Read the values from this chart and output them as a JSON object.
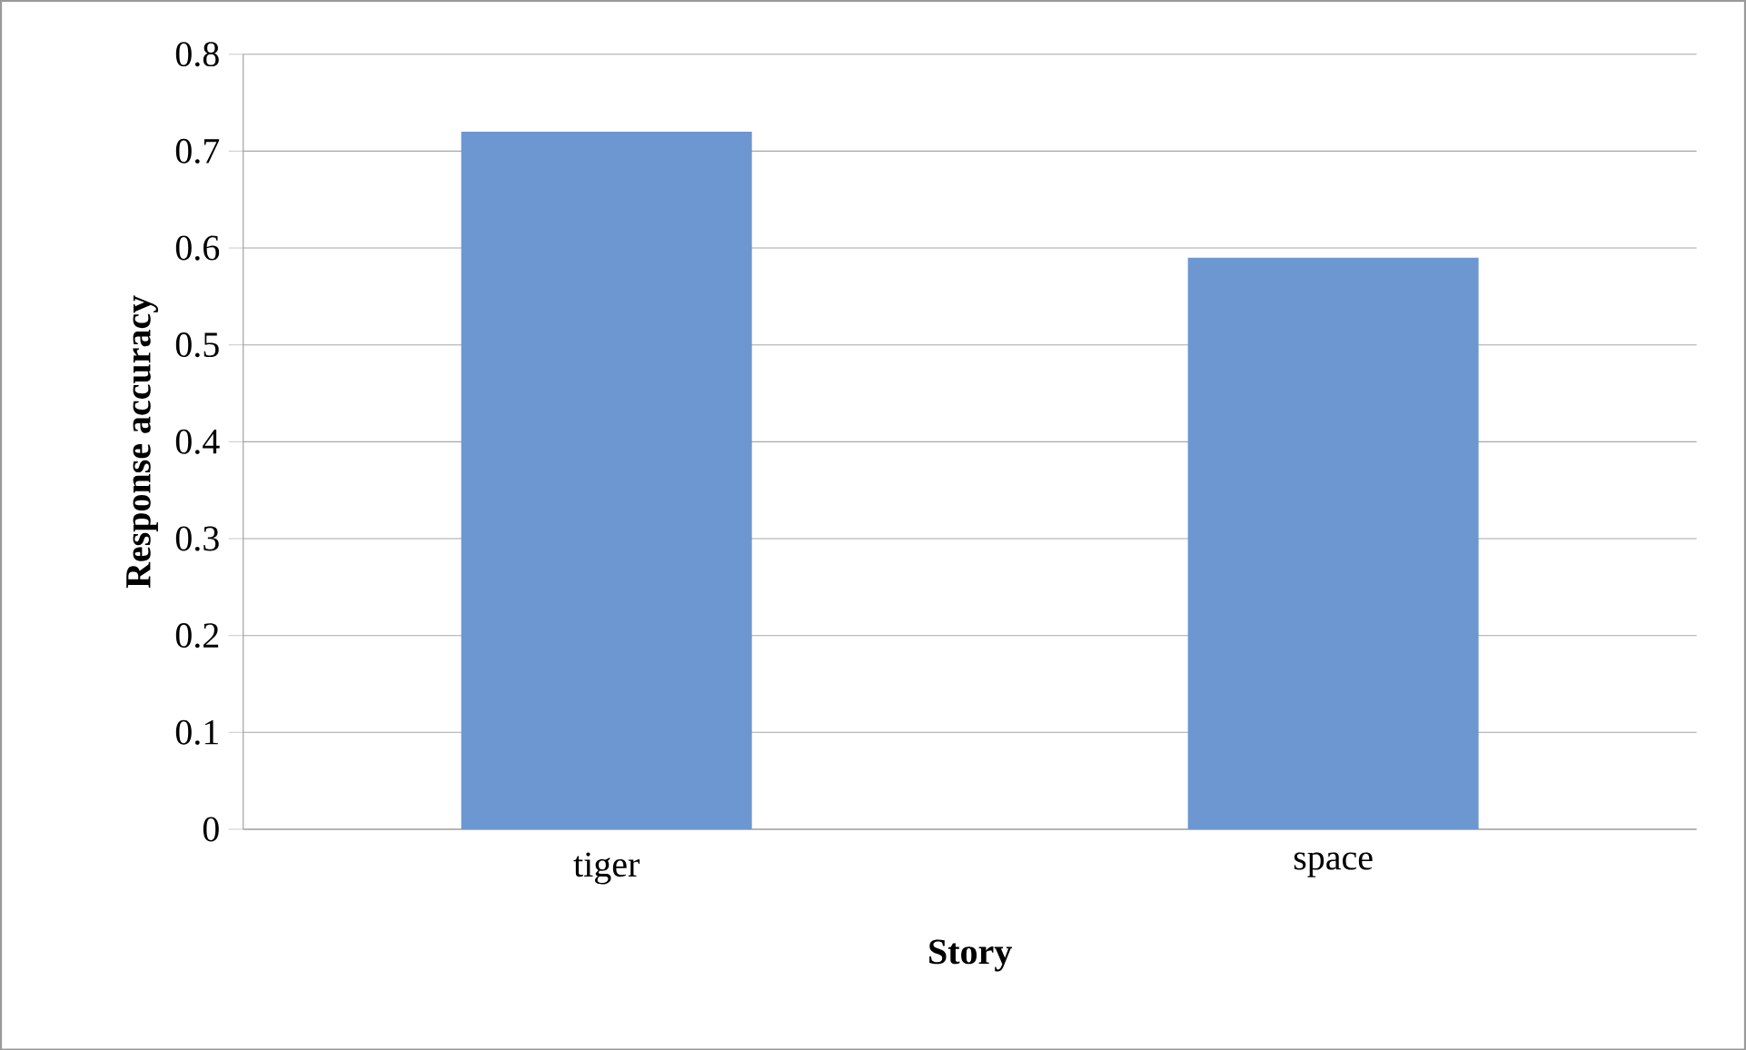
{
  "chart_data": {
    "type": "bar",
    "xlabel": "Story",
    "ylabel": "Response accuracy",
    "categories": [
      "tiger",
      "space"
    ],
    "values": [
      0.72,
      0.59
    ],
    "color": "#6c97d0",
    "ylim": [
      0,
      0.8
    ],
    "yticks": [
      0,
      0.1,
      0.2,
      0.3,
      0.4,
      0.5,
      0.6,
      0.7,
      0.8
    ],
    "grid": "y"
  }
}
